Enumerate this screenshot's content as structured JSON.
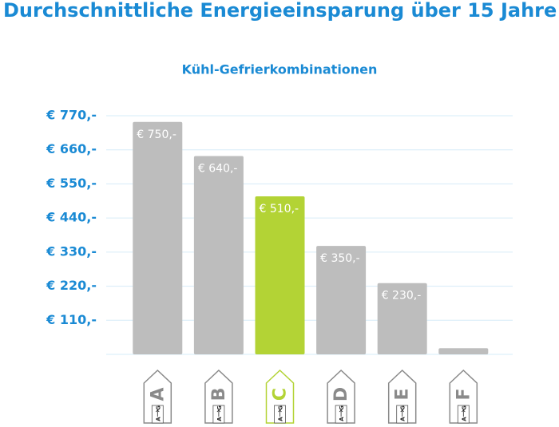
{
  "chart_data": {
    "type": "bar",
    "title": "Durchschnittliche Energieeinsparung über 15 Jahre",
    "subtitle": "Kühl-Gefrierkombinationen",
    "categories": [
      "A",
      "B",
      "C",
      "D",
      "E",
      "F"
    ],
    "values": [
      750,
      640,
      510,
      350,
      230,
      20
    ],
    "value_labels": [
      "€ 750,-",
      "€ 640,-",
      "€ 510,-",
      "€ 350,-",
      "€ 230,-",
      null
    ],
    "colors": [
      "#bdbdbd",
      "#bdbdbd",
      "#b3d335",
      "#bdbdbd",
      "#bdbdbd",
      "#bdbdbd"
    ],
    "energy_scale": {
      "from": "A",
      "to": "G"
    },
    "ylim": [
      0,
      770
    ],
    "yticks": [
      {
        "value": 110,
        "label": "€ 110,-"
      },
      {
        "value": 220,
        "label": "€ 220,-"
      },
      {
        "value": 330,
        "label": "€ 330,-"
      },
      {
        "value": 440,
        "label": "€ 440,-"
      },
      {
        "value": 550,
        "label": "€ 550,-"
      },
      {
        "value": 660,
        "label": "€ 660,-"
      },
      {
        "value": 770,
        "label": "€ 770,-"
      }
    ],
    "grid": true
  }
}
